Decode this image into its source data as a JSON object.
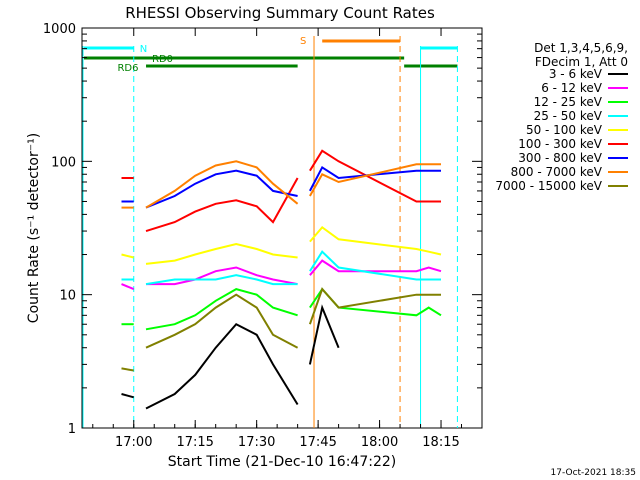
{
  "chart_data": {
    "type": "line",
    "title": "RHESSI Observing Summary Count Rates",
    "xlabel": "Start Time (21-Dec-10 16:47:22)",
    "ylabel": "Count Rate (s⁻¹ detector⁻¹)",
    "y_scale": "log",
    "ylim": [
      1,
      1000
    ],
    "x_ticks": [
      "17:00",
      "17:15",
      "17:30",
      "17:45",
      "18:00",
      "18:15"
    ],
    "y_ticks": [
      "1",
      "10",
      "100",
      "1000"
    ],
    "legend_header": [
      "Det 1,3,4,5,6,9,",
      "FDecim 1, Att 0"
    ],
    "legend_position": "right",
    "footer_date": "17-Oct-2021 18:35",
    "flag_labels": {
      "N": "N",
      "S": "S",
      "RD0": "RD0",
      "RD6": "RD6"
    },
    "gaps": [
      [
        "17:00",
        "17:03"
      ],
      [
        "17:40",
        "17:43"
      ],
      [
        "18:05",
        "18:10"
      ]
    ],
    "series": [
      {
        "name": "3 - 6 keV",
        "color": "#000000",
        "x": [
          "16:57",
          "17:00",
          "17:03",
          "17:10",
          "17:15",
          "17:20",
          "17:25",
          "17:30",
          "17:34",
          "17:40",
          "17:43",
          "17:46",
          "17:50",
          "18:09",
          "18:12",
          "18:15"
        ],
        "values": [
          1.8,
          1.7,
          1.4,
          1.8,
          2.5,
          4,
          6,
          5,
          3,
          1.5,
          3,
          8,
          4,
          null,
          null,
          null
        ]
      },
      {
        "name": "6 - 12 keV",
        "color": "#ff00ff",
        "x": [
          "16:57",
          "17:00",
          "17:03",
          "17:10",
          "17:15",
          "17:20",
          "17:25",
          "17:30",
          "17:34",
          "17:40",
          "17:43",
          "17:46",
          "17:50",
          "18:09",
          "18:12",
          "18:15"
        ],
        "values": [
          12,
          11,
          12,
          12,
          13,
          15,
          16,
          14,
          13,
          12,
          14,
          18,
          15,
          15,
          16,
          15
        ]
      },
      {
        "name": "12 - 25 keV",
        "color": "#00ff00",
        "x": [
          "16:57",
          "17:00",
          "17:03",
          "17:10",
          "17:15",
          "17:20",
          "17:25",
          "17:30",
          "17:34",
          "17:40",
          "17:43",
          "17:46",
          "17:50",
          "18:09",
          "18:12",
          "18:15"
        ],
        "values": [
          6,
          6,
          5.5,
          6,
          7,
          9,
          11,
          10,
          8,
          7,
          8,
          11,
          8,
          7,
          8,
          7
        ]
      },
      {
        "name": "25 - 50 keV",
        "color": "#00ffff",
        "x": [
          "16:57",
          "17:00",
          "17:03",
          "17:10",
          "17:15",
          "17:20",
          "17:25",
          "17:30",
          "17:34",
          "17:40",
          "17:43",
          "17:46",
          "17:50",
          "18:09",
          "18:12",
          "18:15"
        ],
        "values": [
          13,
          13,
          12,
          13,
          13,
          13,
          14,
          13,
          12,
          12,
          15,
          21,
          16,
          13,
          13,
          13
        ]
      },
      {
        "name": "50 - 100 keV",
        "color": "#ffff00",
        "x": [
          "16:57",
          "17:00",
          "17:03",
          "17:10",
          "17:15",
          "17:20",
          "17:25",
          "17:30",
          "17:34",
          "17:40",
          "17:43",
          "17:46",
          "17:50",
          "18:09",
          "18:12",
          "18:15"
        ],
        "values": [
          20,
          19,
          17,
          18,
          20,
          22,
          24,
          22,
          20,
          19,
          25,
          32,
          26,
          22,
          21,
          20
        ]
      },
      {
        "name": "100 - 300 keV",
        "color": "#ff0000",
        "x": [
          "16:57",
          "17:00",
          "17:03",
          "17:10",
          "17:15",
          "17:20",
          "17:25",
          "17:30",
          "17:34",
          "17:40",
          "17:43",
          "17:46",
          "17:50",
          "18:09",
          "18:12",
          "18:15"
        ],
        "values": [
          75,
          75,
          30,
          35,
          42,
          48,
          51,
          46,
          35,
          75,
          85,
          120,
          100,
          50,
          50,
          50
        ]
      },
      {
        "name": "300 - 800 keV",
        "color": "#0000ff",
        "x": [
          "16:57",
          "17:00",
          "17:03",
          "17:10",
          "17:15",
          "17:20",
          "17:25",
          "17:30",
          "17:34",
          "17:40",
          "17:43",
          "17:46",
          "17:50",
          "18:09",
          "18:12",
          "18:15"
        ],
        "values": [
          50,
          50,
          45,
          55,
          68,
          80,
          85,
          78,
          60,
          55,
          60,
          90,
          75,
          85,
          85,
          85
        ]
      },
      {
        "name": "800 - 7000 keV",
        "color": "#ff8000",
        "x": [
          "16:57",
          "17:00",
          "17:03",
          "17:10",
          "17:15",
          "17:20",
          "17:25",
          "17:30",
          "17:34",
          "17:40",
          "17:43",
          "17:46",
          "17:50",
          "18:09",
          "18:12",
          "18:15"
        ],
        "values": [
          45,
          45,
          45,
          60,
          78,
          93,
          100,
          90,
          68,
          48,
          55,
          80,
          70,
          95,
          95,
          95
        ]
      },
      {
        "name": "7000 - 15000 keV",
        "color": "#808000",
        "x": [
          "16:57",
          "17:00",
          "17:03",
          "17:10",
          "17:15",
          "17:20",
          "17:25",
          "17:30",
          "17:34",
          "17:40",
          "17:43",
          "17:46",
          "17:50",
          "18:09",
          "18:12",
          "18:15"
        ],
        "values": [
          2.8,
          2.7,
          4,
          5,
          6,
          8,
          10,
          8,
          5,
          4,
          6,
          11,
          8,
          10,
          10,
          10
        ]
      }
    ]
  }
}
